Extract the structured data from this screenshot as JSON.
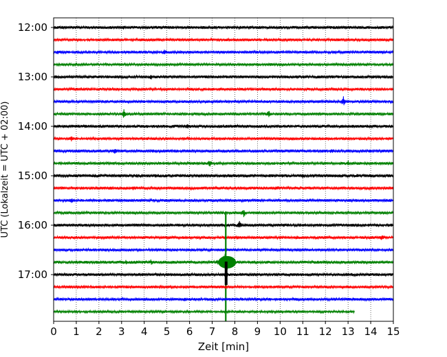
{
  "chart_data": {
    "type": "line",
    "xlabel": "Zeit  [min]",
    "ylabel": "UTC (Lokalzeit = UTC + 02:00)",
    "xlim": [
      0,
      15
    ],
    "x_ticks": [
      "0",
      "1",
      "2",
      "3",
      "4",
      "5",
      "6",
      "7",
      "8",
      "9",
      "10",
      "11",
      "12",
      "13",
      "14",
      "15"
    ],
    "y_tick_labels": [
      "12:00",
      "13:00",
      "14:00",
      "15:00",
      "16:00",
      "17:00"
    ],
    "grid": "vertical dotted lines at each minute",
    "trace_interval_minutes": 15,
    "start_time": "12:00",
    "colors": [
      "#000000",
      "#ff0000",
      "#0000ff",
      "#008000"
    ],
    "series": [
      {
        "color": "#000000",
        "amp": 1.0,
        "events": [
          {
            "x": 3.1,
            "amp": 1.2
          }
        ]
      },
      {
        "color": "#ff0000",
        "amp": 0.9,
        "events": []
      },
      {
        "color": "#0000ff",
        "amp": 0.9,
        "events": [
          {
            "x": 4.9,
            "amp": 3.5
          },
          {
            "x": 0.2,
            "amp": 1.5
          },
          {
            "x": 14.5,
            "amp": 1.5
          }
        ]
      },
      {
        "color": "#008000",
        "amp": 0.8,
        "events": [
          {
            "x": 13.8,
            "amp": 1.4
          },
          {
            "x": 9.6,
            "amp": 1.2
          }
        ]
      },
      {
        "color": "#000000",
        "amp": 1.0,
        "events": [
          {
            "x": 4.3,
            "amp": 2.0
          }
        ]
      },
      {
        "color": "#ff0000",
        "amp": 0.9,
        "events": []
      },
      {
        "color": "#0000ff",
        "amp": 0.9,
        "events": [
          {
            "x": 12.8,
            "amp": 6.0
          },
          {
            "x": 0.5,
            "amp": 1.4
          }
        ]
      },
      {
        "color": "#008000",
        "amp": 0.9,
        "events": [
          {
            "x": 3.1,
            "amp": 6.0
          },
          {
            "x": 9.5,
            "amp": 5.0
          }
        ]
      },
      {
        "color": "#000000",
        "amp": 1.0,
        "events": [
          {
            "x": 5.9,
            "amp": 3.0
          }
        ]
      },
      {
        "color": "#ff0000",
        "amp": 0.9,
        "events": [
          {
            "x": 0.8,
            "amp": 3.5
          },
          {
            "x": 10.5,
            "amp": 1.4
          }
        ]
      },
      {
        "color": "#0000ff",
        "amp": 1.0,
        "events": [
          {
            "x": 2.7,
            "amp": 3.0
          },
          {
            "x": 12.3,
            "amp": 2.0
          }
        ]
      },
      {
        "color": "#008000",
        "amp": 0.9,
        "events": [
          {
            "x": 6.9,
            "amp": 5.0
          },
          {
            "x": 13.0,
            "amp": 2.5
          }
        ]
      },
      {
        "color": "#000000",
        "amp": 1.1,
        "events": [
          {
            "x": 11.0,
            "amp": 1.6
          }
        ]
      },
      {
        "color": "#ff0000",
        "amp": 1.0,
        "events": [
          {
            "x": 3.5,
            "amp": 1.5
          },
          {
            "x": 9.9,
            "amp": 1.4
          }
        ]
      },
      {
        "color": "#0000ff",
        "amp": 0.9,
        "events": [
          {
            "x": 0.8,
            "amp": 2.5
          },
          {
            "x": 11.3,
            "amp": 1.5
          }
        ]
      },
      {
        "color": "#008000",
        "amp": 0.9,
        "events": [
          {
            "x": 8.4,
            "amp": 5.0
          },
          {
            "x": 7.2,
            "amp": 2.0
          }
        ]
      },
      {
        "color": "#000000",
        "amp": 1.0,
        "events": [
          {
            "x": 8.2,
            "amp": 4.5
          },
          {
            "x": 10.2,
            "amp": 1.6
          }
        ]
      },
      {
        "color": "#ff0000",
        "amp": 0.9,
        "events": [
          {
            "x": 14.5,
            "amp": 3.5
          },
          {
            "x": 10.8,
            "amp": 1.8
          },
          {
            "x": 8.1,
            "amp": 1.5
          }
        ]
      },
      {
        "color": "#0000ff",
        "amp": 0.9,
        "events": [
          {
            "x": 2.3,
            "amp": 1.4
          }
        ]
      },
      {
        "color": "#008000",
        "amp": 1.0,
        "events": [
          {
            "x": 7.6,
            "amp": 12.0
          },
          {
            "x": 3.2,
            "amp": 2.5
          },
          {
            "x": 4.3,
            "amp": 2.0
          }
        ]
      },
      {
        "color": "#000000",
        "amp": 1.0,
        "events": [
          {
            "x": 7.6,
            "amp": 4.0
          }
        ]
      },
      {
        "color": "#ff0000",
        "amp": 0.9,
        "events": [
          {
            "x": 1.9,
            "amp": 1.5
          }
        ]
      },
      {
        "color": "#0000ff",
        "amp": 0.9,
        "events": [
          {
            "x": 5.8,
            "amp": 1.3
          }
        ]
      },
      {
        "color": "#008000",
        "amp": 0.8,
        "events": [],
        "end_x": 13.3
      }
    ]
  }
}
